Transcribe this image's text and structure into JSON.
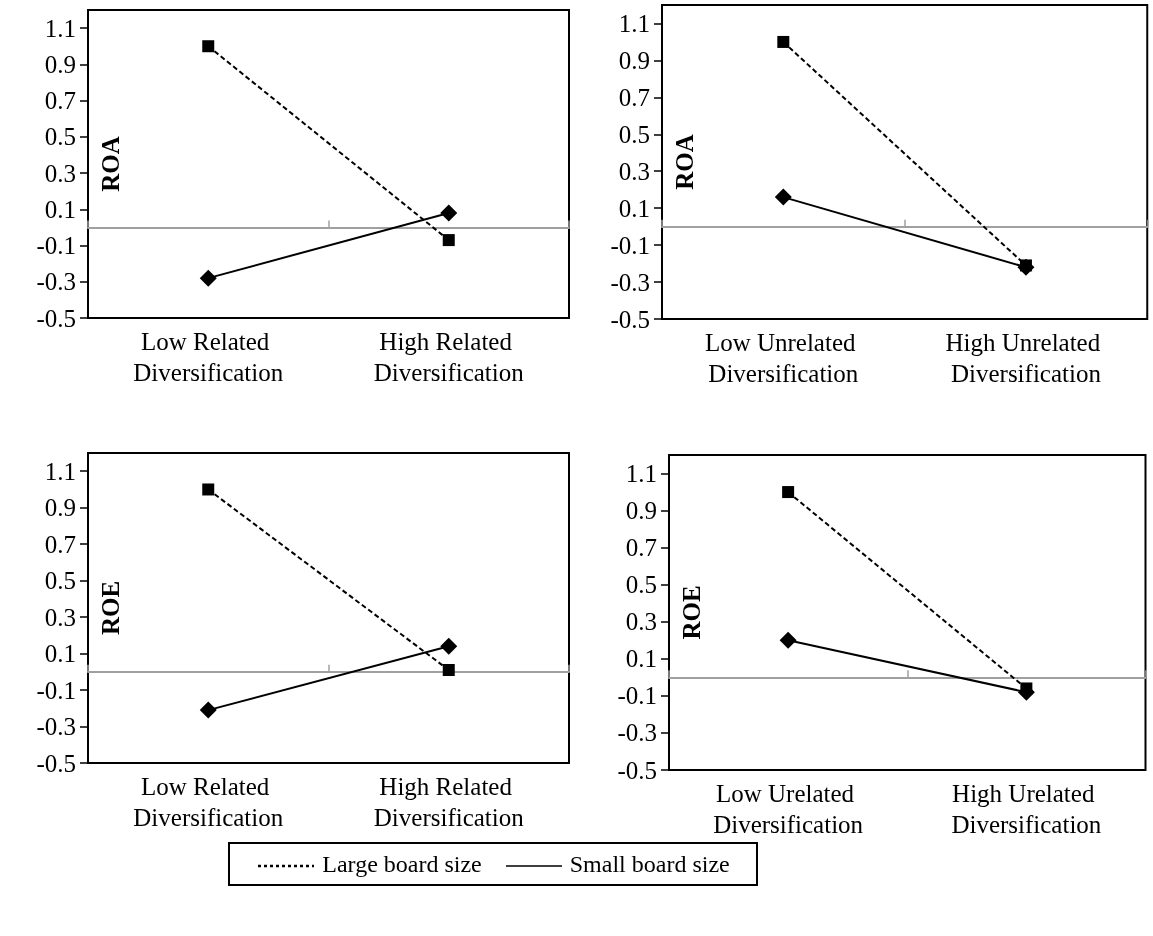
{
  "chart_data": [
    {
      "type": "line",
      "ylabel": "ROA",
      "categories": [
        "Low Related Diversification",
        "High Related Diversification"
      ],
      "ylim": [
        -0.5,
        1.2
      ],
      "yticks": [
        -0.5,
        -0.3,
        -0.1,
        0.1,
        0.3,
        0.5,
        0.7,
        0.9,
        1.1
      ],
      "grid": false,
      "legend": "bottom",
      "series": [
        {
          "name": "Large board size",
          "color": "#000000",
          "marker": "square",
          "line_style": "dashed",
          "values": [
            1.0,
            -0.07
          ]
        },
        {
          "name": "Small board size",
          "color": "#000000",
          "marker": "diamond",
          "line_style": "solid",
          "values": [
            -0.28,
            0.08
          ]
        }
      ]
    },
    {
      "type": "line",
      "ylabel": "ROA",
      "categories": [
        "Low Unrelated Diversification",
        "High Unrelated Diversification"
      ],
      "ylim": [
        -0.5,
        1.2
      ],
      "yticks": [
        -0.5,
        -0.3,
        -0.1,
        0.1,
        0.3,
        0.5,
        0.7,
        0.9,
        1.1
      ],
      "grid": false,
      "legend": "bottom",
      "series": [
        {
          "name": "Large board size",
          "color": "#000000",
          "marker": "square",
          "line_style": "dashed",
          "values": [
            1.0,
            -0.21
          ]
        },
        {
          "name": "Small board size",
          "color": "#000000",
          "marker": "diamond",
          "line_style": "solid",
          "values": [
            0.16,
            -0.22
          ]
        }
      ]
    },
    {
      "type": "line",
      "ylabel": "ROE",
      "categories": [
        "Low Related Diversification",
        "High Related Diversification"
      ],
      "ylim": [
        -0.5,
        1.2
      ],
      "yticks": [
        -0.5,
        -0.3,
        -0.1,
        0.1,
        0.3,
        0.5,
        0.7,
        0.9,
        1.1
      ],
      "grid": false,
      "legend": "bottom",
      "series": [
        {
          "name": "Large board size",
          "color": "#000000",
          "marker": "square",
          "line_style": "dashed",
          "values": [
            1.0,
            0.01
          ]
        },
        {
          "name": "Small board size",
          "color": "#000000",
          "marker": "diamond",
          "line_style": "solid",
          "values": [
            -0.21,
            0.14
          ]
        }
      ]
    },
    {
      "type": "line",
      "ylabel": "ROE",
      "categories": [
        "Low Urelated Diversification",
        "High Urelated Diversification"
      ],
      "ylim": [
        -0.5,
        1.2
      ],
      "yticks": [
        -0.5,
        -0.3,
        -0.1,
        0.1,
        0.3,
        0.5,
        0.7,
        0.9,
        1.1
      ],
      "grid": false,
      "legend": "bottom",
      "series": [
        {
          "name": "Large board size",
          "color": "#000000",
          "marker": "square",
          "line_style": "dashed",
          "values": [
            1.0,
            -0.06
          ]
        },
        {
          "name": "Small board size",
          "color": "#000000",
          "marker": "diamond",
          "line_style": "solid",
          "values": [
            0.2,
            -0.08
          ]
        }
      ]
    }
  ]
}
